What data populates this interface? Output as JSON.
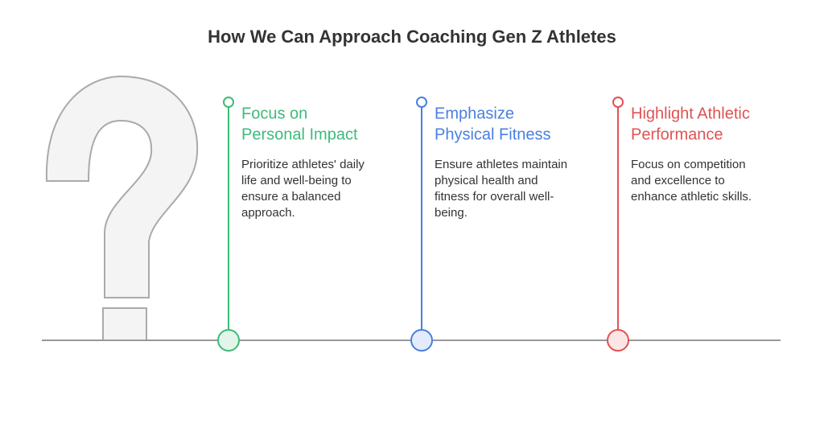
{
  "title": "How We Can Approach Coaching Gen Z Athletes",
  "items": [
    {
      "heading": [
        "Focus on",
        "Personal Impact"
      ],
      "color": "#3dbb79",
      "tint": "#e3f5ea",
      "description": [
        "Prioritize athletes' daily",
        "life and well-being to",
        "ensure a balanced",
        "approach."
      ]
    },
    {
      "heading": [
        "Emphasize",
        "Physical Fitness"
      ],
      "color": "#4a7fe0",
      "tint": "#e4ecfb",
      "description": [
        "Ensure athletes maintain",
        "physical health and",
        "fitness for overall well-",
        "being."
      ]
    },
    {
      "heading": [
        "Highlight Athletic",
        "Performance"
      ],
      "color": "#e05252",
      "tint": "#fbe5e5",
      "description": [
        "Focus on competition",
        "and excellence to",
        "enhance athletic skills."
      ]
    }
  ]
}
